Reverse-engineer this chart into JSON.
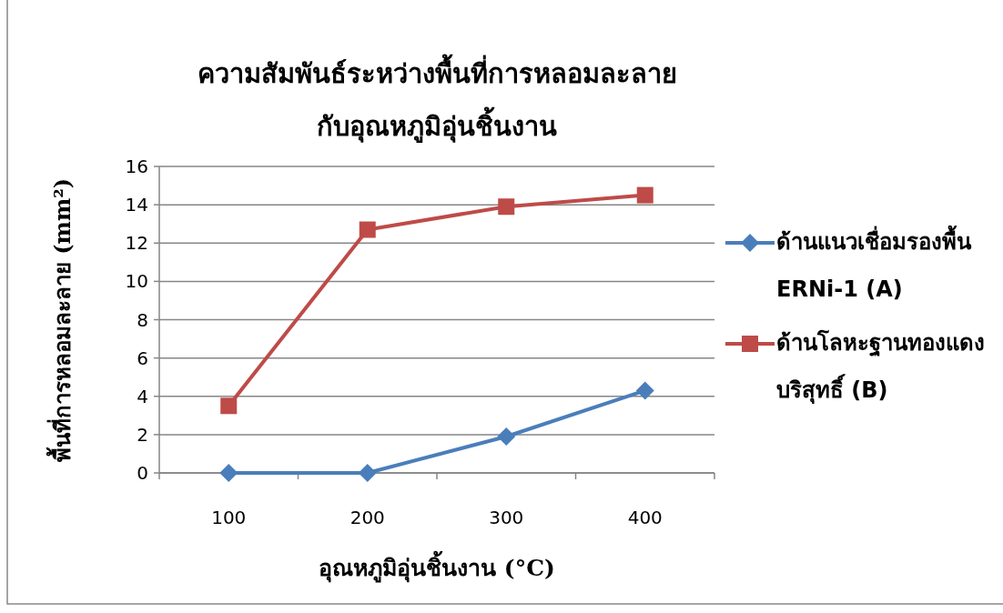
{
  "chart_data": {
    "type": "line",
    "title": "ความสัมพันธ์ระหว่างพื้นที่การหลอมละลายกับอุณหภูมิอุ่นชิ้นงาน",
    "xlabel": "อุณหภูมิอุ่นชิ้นงาน (°C)",
    "ylabel": "พื้นที่การหลอมละลาย  (mm²)",
    "categories": [
      "100",
      "200",
      "300",
      "400"
    ],
    "series": [
      {
        "name": "ด้านแนวเชื่อมรองพื้น ERNi-1 (A)",
        "color": "#4a7ebb",
        "marker": "diamond",
        "values": [
          0,
          0,
          1.9,
          4.3
        ]
      },
      {
        "name": "ด้านโลหะฐานทองแดงบริสุทธิ์ (B)",
        "color": "#be4b48",
        "marker": "square",
        "values": [
          3.5,
          12.7,
          13.9,
          14.5
        ]
      }
    ],
    "ylim": [
      0,
      16
    ],
    "yticks": [
      0,
      2,
      4,
      6,
      8,
      10,
      12,
      14,
      16
    ],
    "grid": "y",
    "legend": "right",
    "line_style": "solid"
  }
}
